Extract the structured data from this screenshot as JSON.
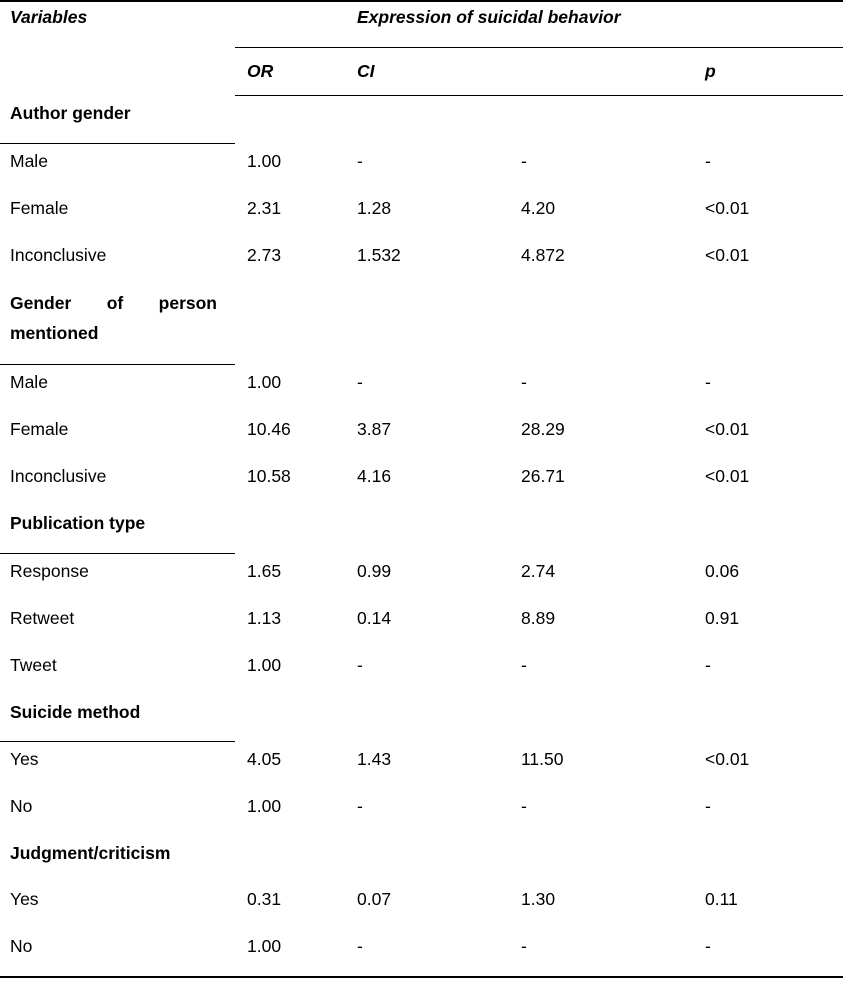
{
  "table": {
    "title_row": {
      "variables": "Variables",
      "group": "Expression of suicidal behavior"
    },
    "subheader": {
      "or": "OR",
      "ci": "CI",
      "p": "p"
    },
    "sections": [
      {
        "title": "Author gender",
        "rows": [
          {
            "label": "Male",
            "or": "1.00",
            "ci_low": "-",
            "ci_high": "-",
            "p": "-"
          },
          {
            "label": "Female",
            "or": "2.31",
            "ci_low": "1.28",
            "ci_high": "4.20",
            "p": "<0.01"
          },
          {
            "label": "Inconclusive",
            "or": "2.73",
            "ci_low": "1.532",
            "ci_high": "4.872",
            "p": "<0.01"
          }
        ]
      },
      {
        "title": "Gender of person mentioned",
        "rows": [
          {
            "label": "Male",
            "or": "1.00",
            "ci_low": "-",
            "ci_high": "-",
            "p": "-"
          },
          {
            "label": "Female",
            "or": "10.46",
            "ci_low": "3.87",
            "ci_high": "28.29",
            "p": "<0.01"
          },
          {
            "label": "Inconclusive",
            "or": "10.58",
            "ci_low": "4.16",
            "ci_high": "26.71",
            "p": "<0.01"
          }
        ]
      },
      {
        "title": "Publication type",
        "rows": [
          {
            "label": "Response",
            "or": "1.65",
            "ci_low": "0.99",
            "ci_high": "2.74",
            "p": "0.06"
          },
          {
            "label": "Retweet",
            "or": "1.13",
            "ci_low": "0.14",
            "ci_high": "8.89",
            "p": "0.91"
          },
          {
            "label": "Tweet",
            "or": "1.00",
            "ci_low": "-",
            "ci_high": "-",
            "p": "-"
          }
        ]
      },
      {
        "title": "Suicide method",
        "rows": [
          {
            "label": "Yes",
            "or": "4.05",
            "ci_low": "1.43",
            "ci_high": "11.50",
            "p": "<0.01"
          },
          {
            "label": "No",
            "or": "1.00",
            "ci_low": "-",
            "ci_high": "-",
            "p": "-"
          }
        ]
      },
      {
        "title": "Judgment/criticism",
        "rows": [
          {
            "label": "Yes",
            "or": "0.31",
            "ci_low": "0.07",
            "ci_high": "1.30",
            "p": "0.11"
          },
          {
            "label": "No",
            "or": "1.00",
            "ci_low": "-",
            "ci_high": "-",
            "p": "-"
          }
        ]
      }
    ]
  }
}
